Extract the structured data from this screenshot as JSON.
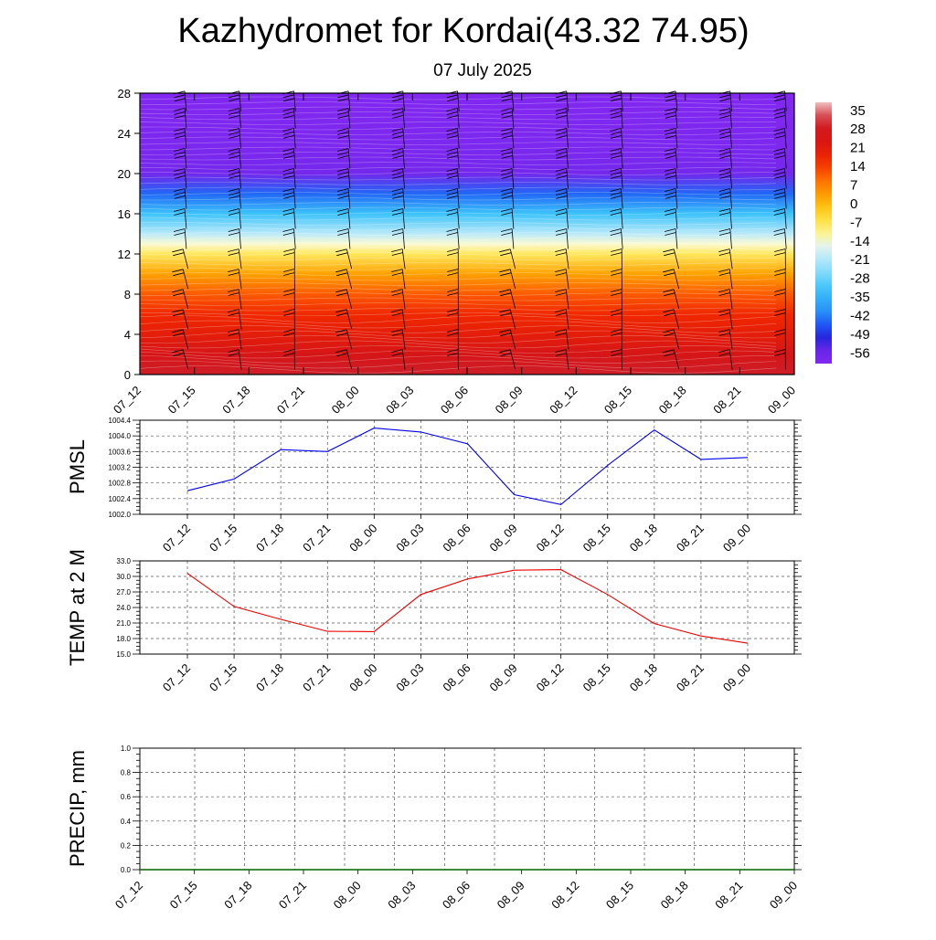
{
  "title": "Kazhydromet for Kordai(43.32 74.95)",
  "subtitle": "07 July 2025",
  "chart_data": [
    {
      "type": "heatmap",
      "name": "temperature-cross-section",
      "x_ticks": [
        "07_12",
        "07_15",
        "07_18",
        "07_21",
        "08_00",
        "08_03",
        "08_06",
        "08_09",
        "08_12",
        "08_15",
        "08_18",
        "08_21",
        "09_00"
      ],
      "y_ticks": [
        "0",
        "4",
        "8",
        "12",
        "16",
        "20",
        "24",
        "28"
      ],
      "ylim": [
        0,
        28
      ],
      "colorbar": {
        "labels": [
          "35",
          "28",
          "21",
          "14",
          "7",
          "0",
          "-7",
          "-14",
          "-21",
          "-28",
          "-35",
          "-42",
          "-49",
          "-56"
        ],
        "range": [
          -60,
          38
        ]
      },
      "layers": [
        {
          "height": 0,
          "value": 31
        },
        {
          "height": 2,
          "value": 25
        },
        {
          "height": 4,
          "value": 20
        },
        {
          "height": 6,
          "value": 16
        },
        {
          "height": 8,
          "value": 11
        },
        {
          "height": 10,
          "value": 3
        },
        {
          "height": 12,
          "value": -8
        },
        {
          "height": 13,
          "value": -14
        },
        {
          "height": 14,
          "value": -20
        },
        {
          "height": 16,
          "value": -32
        },
        {
          "height": 18,
          "value": -44
        },
        {
          "height": 20,
          "value": -56
        },
        {
          "height": 22,
          "value": -58
        },
        {
          "height": 28,
          "value": -60
        }
      ]
    },
    {
      "type": "line",
      "name": "pmsl",
      "ylabel": "PMSL",
      "categories": [
        "07_12",
        "07_15",
        "07_18",
        "07_21",
        "08_00",
        "08_03",
        "08_06",
        "08_09",
        "08_12",
        "08_15",
        "08_18",
        "08_21",
        "09_00"
      ],
      "values": [
        1002.6,
        1002.9,
        1003.65,
        1003.6,
        1004.2,
        1004.1,
        1003.8,
        1002.5,
        1002.25,
        1003.25,
        1004.15,
        1003.4,
        1003.45
      ],
      "y_ticks": [
        "1002.0",
        "1002.4",
        "1002.8",
        "1003.2",
        "1003.6",
        "1004.0",
        "1004.4"
      ],
      "ylim": [
        1002.0,
        1004.4
      ],
      "color": "#0000ee"
    },
    {
      "type": "line",
      "name": "temp-2m",
      "ylabel": "TEMP at 2 M",
      "categories": [
        "07_12",
        "07_15",
        "07_18",
        "07_21",
        "08_00",
        "08_03",
        "08_06",
        "08_09",
        "08_12",
        "08_15",
        "08_18",
        "08_21",
        "09_00"
      ],
      "values": [
        30.6,
        24.2,
        21.7,
        19.4,
        19.35,
        26.5,
        29.5,
        31.2,
        31.3,
        26.5,
        20.9,
        18.5,
        17.1
      ],
      "y_ticks": [
        "15.0",
        "18.0",
        "21.0",
        "24.0",
        "27.0",
        "30.0",
        "33.0"
      ],
      "ylim": [
        15.0,
        33.0
      ],
      "color": "#ee0000"
    },
    {
      "type": "line",
      "name": "precip",
      "ylabel": "PRECIP, mm",
      "categories": [
        "07_12",
        "07_15",
        "07_18",
        "07_21",
        "08_00",
        "08_03",
        "08_06",
        "08_09",
        "08_12",
        "08_15",
        "08_18",
        "08_21",
        "09_00"
      ],
      "values": [
        0,
        0,
        0,
        0,
        0,
        0,
        0,
        0,
        0,
        0,
        0,
        0,
        0
      ],
      "y_ticks": [
        "0.0",
        "0.2",
        "0.4",
        "0.6",
        "0.8",
        "1.0"
      ],
      "ylim": [
        0,
        1.0
      ],
      "color": "#006400"
    }
  ]
}
